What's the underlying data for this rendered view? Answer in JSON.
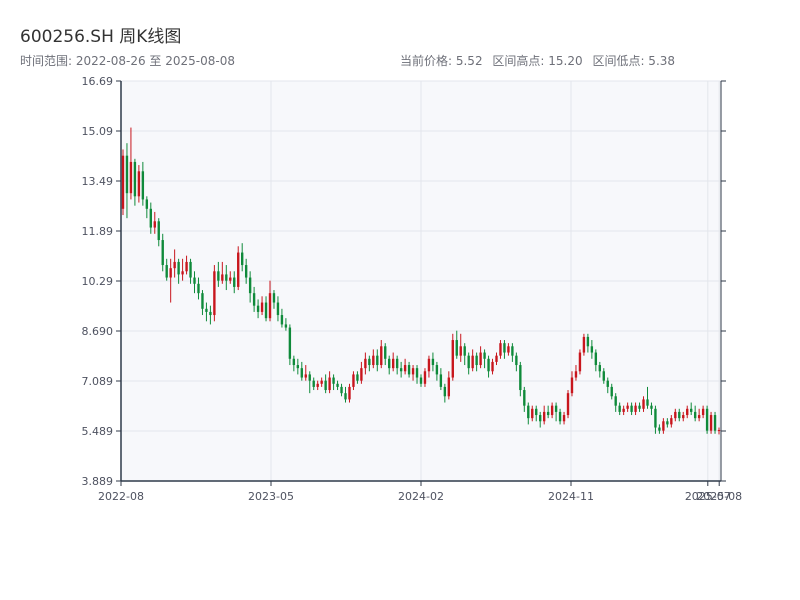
{
  "header": {
    "title": "600256.SH 周K线图",
    "date_range": "时间范围: 2022-08-26 至 2025-08-08",
    "current_price": "当前价格: 5.52",
    "range_high": "区间高点: 15.20",
    "range_low": "区间低点: 5.38"
  },
  "colors": {
    "up": "#c8161d",
    "down": "#0f8a3a",
    "plot_bg": "#f7f8fb",
    "grid": "#e3e6ec",
    "axis": "#2f3a4a"
  },
  "chart_data": {
    "type": "candlestick",
    "title": "600256.SH 周K线图",
    "xlabel": "",
    "ylabel": "",
    "ylim": [
      3.889,
      16.69
    ],
    "y_ticks": [
      "3.889",
      "5.489",
      "7.089",
      "8.690",
      "10.29",
      "11.89",
      "13.49",
      "15.09",
      "16.69"
    ],
    "x_ticks": [
      "2022-08",
      "2023-05",
      "2024-02",
      "2024-11",
      "2025-07",
      "2025-08"
    ],
    "grid": true,
    "series": [
      {
        "values": [
          [
            12.6,
            14.3,
            14.5,
            12.4
          ],
          [
            14.3,
            13.1,
            14.7,
            12.3
          ],
          [
            13.1,
            14.1,
            15.2,
            12.9
          ],
          [
            14.1,
            13.0,
            14.2,
            12.7
          ],
          [
            13.0,
            13.8,
            14.0,
            12.8
          ],
          [
            13.8,
            12.9,
            14.1,
            12.7
          ],
          [
            12.9,
            12.6,
            13.0,
            12.3
          ],
          [
            12.6,
            12.0,
            12.8,
            11.8
          ],
          [
            12.0,
            12.2,
            12.5,
            11.8
          ],
          [
            12.2,
            11.6,
            12.3,
            11.4
          ],
          [
            11.6,
            10.8,
            11.8,
            10.6
          ],
          [
            10.8,
            10.4,
            11.0,
            10.3
          ],
          [
            10.4,
            10.7,
            11.0,
            9.6
          ],
          [
            10.7,
            10.9,
            11.3,
            10.4
          ],
          [
            10.9,
            10.5,
            11.0,
            10.2
          ],
          [
            10.5,
            10.6,
            11.0,
            10.3
          ],
          [
            10.6,
            10.9,
            11.1,
            10.5
          ],
          [
            10.9,
            10.4,
            11.0,
            10.2
          ],
          [
            10.4,
            10.2,
            10.6,
            9.9
          ],
          [
            10.2,
            9.9,
            10.4,
            9.7
          ],
          [
            9.9,
            9.4,
            10.0,
            9.2
          ],
          [
            9.4,
            9.3,
            9.6,
            9.0
          ],
          [
            9.3,
            9.2,
            9.5,
            8.9
          ],
          [
            9.2,
            10.6,
            10.8,
            9.0
          ],
          [
            10.6,
            10.3,
            10.9,
            10.1
          ],
          [
            10.3,
            10.5,
            10.9,
            10.2
          ],
          [
            10.5,
            10.3,
            10.8,
            10.0
          ],
          [
            10.3,
            10.4,
            10.6,
            10.2
          ],
          [
            10.4,
            10.1,
            10.6,
            9.9
          ],
          [
            10.1,
            11.2,
            11.4,
            10.0
          ],
          [
            11.2,
            10.8,
            11.5,
            10.6
          ],
          [
            10.8,
            10.4,
            11.0,
            10.2
          ],
          [
            10.4,
            9.9,
            10.6,
            9.6
          ],
          [
            9.9,
            9.5,
            10.1,
            9.3
          ],
          [
            9.5,
            9.3,
            9.7,
            9.1
          ],
          [
            9.3,
            9.6,
            9.8,
            9.2
          ],
          [
            9.6,
            9.1,
            9.8,
            9.0
          ],
          [
            9.1,
            9.9,
            10.3,
            9.0
          ],
          [
            9.9,
            9.6,
            10.0,
            9.4
          ],
          [
            9.6,
            9.2,
            9.8,
            9.0
          ],
          [
            9.2,
            8.9,
            9.4,
            8.8
          ],
          [
            8.9,
            8.8,
            9.1,
            8.7
          ],
          [
            8.8,
            7.8,
            8.9,
            7.6
          ],
          [
            7.8,
            7.6,
            7.9,
            7.4
          ],
          [
            7.6,
            7.5,
            7.8,
            7.3
          ],
          [
            7.5,
            7.2,
            7.7,
            7.1
          ],
          [
            7.2,
            7.3,
            7.6,
            7.1
          ],
          [
            7.3,
            7.1,
            7.4,
            6.7
          ],
          [
            7.1,
            6.9,
            7.2,
            6.8
          ],
          [
            6.9,
            7.0,
            7.1,
            6.8
          ],
          [
            7.0,
            7.1,
            7.2,
            6.9
          ],
          [
            7.1,
            6.8,
            7.3,
            6.7
          ],
          [
            6.8,
            7.2,
            7.4,
            6.7
          ],
          [
            7.2,
            7.0,
            7.3,
            6.8
          ],
          [
            7.0,
            6.9,
            7.1,
            6.8
          ],
          [
            6.9,
            6.7,
            7.0,
            6.6
          ],
          [
            6.7,
            6.5,
            6.9,
            6.4
          ],
          [
            6.5,
            6.9,
            7.0,
            6.4
          ],
          [
            6.9,
            7.3,
            7.4,
            6.8
          ],
          [
            7.3,
            7.1,
            7.4,
            7.0
          ],
          [
            7.1,
            7.5,
            7.7,
            7.0
          ],
          [
            7.5,
            7.8,
            8.0,
            7.3
          ],
          [
            7.8,
            7.6,
            7.9,
            7.4
          ],
          [
            7.6,
            7.9,
            8.1,
            7.5
          ],
          [
            7.9,
            7.6,
            8.1,
            7.4
          ],
          [
            7.6,
            8.2,
            8.4,
            7.5
          ],
          [
            8.2,
            7.8,
            8.3,
            7.6
          ],
          [
            7.8,
            7.5,
            7.9,
            7.3
          ],
          [
            7.5,
            7.8,
            8.0,
            7.4
          ],
          [
            7.8,
            7.5,
            7.9,
            7.3
          ],
          [
            7.5,
            7.4,
            7.7,
            7.2
          ],
          [
            7.4,
            7.6,
            7.8,
            7.3
          ],
          [
            7.6,
            7.3,
            7.7,
            7.2
          ],
          [
            7.3,
            7.5,
            7.6,
            7.1
          ],
          [
            7.5,
            7.2,
            7.6,
            7.0
          ],
          [
            7.2,
            7.0,
            7.3,
            6.9
          ],
          [
            7.0,
            7.4,
            7.5,
            6.9
          ],
          [
            7.4,
            7.8,
            7.9,
            7.2
          ],
          [
            7.8,
            7.6,
            8.0,
            7.4
          ],
          [
            7.6,
            7.3,
            7.7,
            7.1
          ],
          [
            7.3,
            6.9,
            7.5,
            6.8
          ],
          [
            6.9,
            6.6,
            7.0,
            6.4
          ],
          [
            6.6,
            7.2,
            7.4,
            6.5
          ],
          [
            7.2,
            8.4,
            8.6,
            7.1
          ],
          [
            8.4,
            7.9,
            8.7,
            7.8
          ],
          [
            7.9,
            8.2,
            8.6,
            7.7
          ],
          [
            8.2,
            7.9,
            8.3,
            7.6
          ],
          [
            7.9,
            7.5,
            8.0,
            7.3
          ],
          [
            7.5,
            7.9,
            8.1,
            7.4
          ],
          [
            7.9,
            7.6,
            8.0,
            7.4
          ],
          [
            7.6,
            8.0,
            8.2,
            7.5
          ],
          [
            8.0,
            7.8,
            8.1,
            7.5
          ],
          [
            7.8,
            7.4,
            7.9,
            7.2
          ],
          [
            7.4,
            7.7,
            7.8,
            7.3
          ],
          [
            7.7,
            7.9,
            8.0,
            7.6
          ],
          [
            7.9,
            8.3,
            8.4,
            7.8
          ],
          [
            8.3,
            8.0,
            8.4,
            7.8
          ],
          [
            8.0,
            8.2,
            8.3,
            7.9
          ],
          [
            8.2,
            7.9,
            8.3,
            7.7
          ],
          [
            7.9,
            7.6,
            8.0,
            7.4
          ],
          [
            7.6,
            6.8,
            7.7,
            6.6
          ],
          [
            6.8,
            6.3,
            6.9,
            6.1
          ],
          [
            6.3,
            5.9,
            6.4,
            5.7
          ],
          [
            5.9,
            6.2,
            6.3,
            5.8
          ],
          [
            6.2,
            6.0,
            6.3,
            5.8
          ],
          [
            6.0,
            5.8,
            6.1,
            5.6
          ],
          [
            5.8,
            6.1,
            6.3,
            5.7
          ],
          [
            6.1,
            6.0,
            6.3,
            5.9
          ],
          [
            6.0,
            6.3,
            6.4,
            5.9
          ],
          [
            6.3,
            6.1,
            6.4,
            5.8
          ],
          [
            6.1,
            5.8,
            6.2,
            5.7
          ],
          [
            5.8,
            6.0,
            6.1,
            5.7
          ],
          [
            6.0,
            6.7,
            6.8,
            5.9
          ],
          [
            6.7,
            7.2,
            7.4,
            6.6
          ],
          [
            7.2,
            7.4,
            7.6,
            7.1
          ],
          [
            7.4,
            8.0,
            8.1,
            7.3
          ],
          [
            8.0,
            8.5,
            8.6,
            7.9
          ],
          [
            8.5,
            8.2,
            8.6,
            8.0
          ],
          [
            8.2,
            8.0,
            8.4,
            7.8
          ],
          [
            8.0,
            7.6,
            8.1,
            7.4
          ],
          [
            7.6,
            7.4,
            7.7,
            7.2
          ],
          [
            7.4,
            7.1,
            7.5,
            7.0
          ],
          [
            7.1,
            6.9,
            7.2,
            6.7
          ],
          [
            6.9,
            6.6,
            7.0,
            6.5
          ],
          [
            6.6,
            6.3,
            6.7,
            6.1
          ],
          [
            6.3,
            6.1,
            6.4,
            6.0
          ],
          [
            6.1,
            6.2,
            6.3,
            6.0
          ],
          [
            6.2,
            6.3,
            6.4,
            6.1
          ],
          [
            6.3,
            6.1,
            6.4,
            6.0
          ],
          [
            6.1,
            6.3,
            6.4,
            6.0
          ],
          [
            6.3,
            6.2,
            6.4,
            6.1
          ],
          [
            6.2,
            6.5,
            6.6,
            6.1
          ],
          [
            6.5,
            6.3,
            6.9,
            6.2
          ],
          [
            6.3,
            6.2,
            6.4,
            6.0
          ],
          [
            6.2,
            5.6,
            6.3,
            5.4
          ],
          [
            5.6,
            5.5,
            5.7,
            5.4
          ],
          [
            5.5,
            5.8,
            5.9,
            5.4
          ],
          [
            5.8,
            5.7,
            5.9,
            5.6
          ],
          [
            5.7,
            5.9,
            6.0,
            5.6
          ],
          [
            5.9,
            6.1,
            6.2,
            5.8
          ],
          [
            6.1,
            5.9,
            6.2,
            5.8
          ],
          [
            5.9,
            6.0,
            6.1,
            5.8
          ],
          [
            6.0,
            6.2,
            6.3,
            5.9
          ],
          [
            6.2,
            6.1,
            6.4,
            6.0
          ],
          [
            6.1,
            5.9,
            6.3,
            5.8
          ],
          [
            5.9,
            6.0,
            6.2,
            5.8
          ],
          [
            6.0,
            6.2,
            6.3,
            5.9
          ],
          [
            6.2,
            5.5,
            6.3,
            5.4
          ],
          [
            5.5,
            6.0,
            6.1,
            5.4
          ],
          [
            6.0,
            5.5,
            6.1,
            5.4
          ],
          [
            5.5,
            5.52,
            5.6,
            5.38
          ]
        ]
      }
    ]
  }
}
